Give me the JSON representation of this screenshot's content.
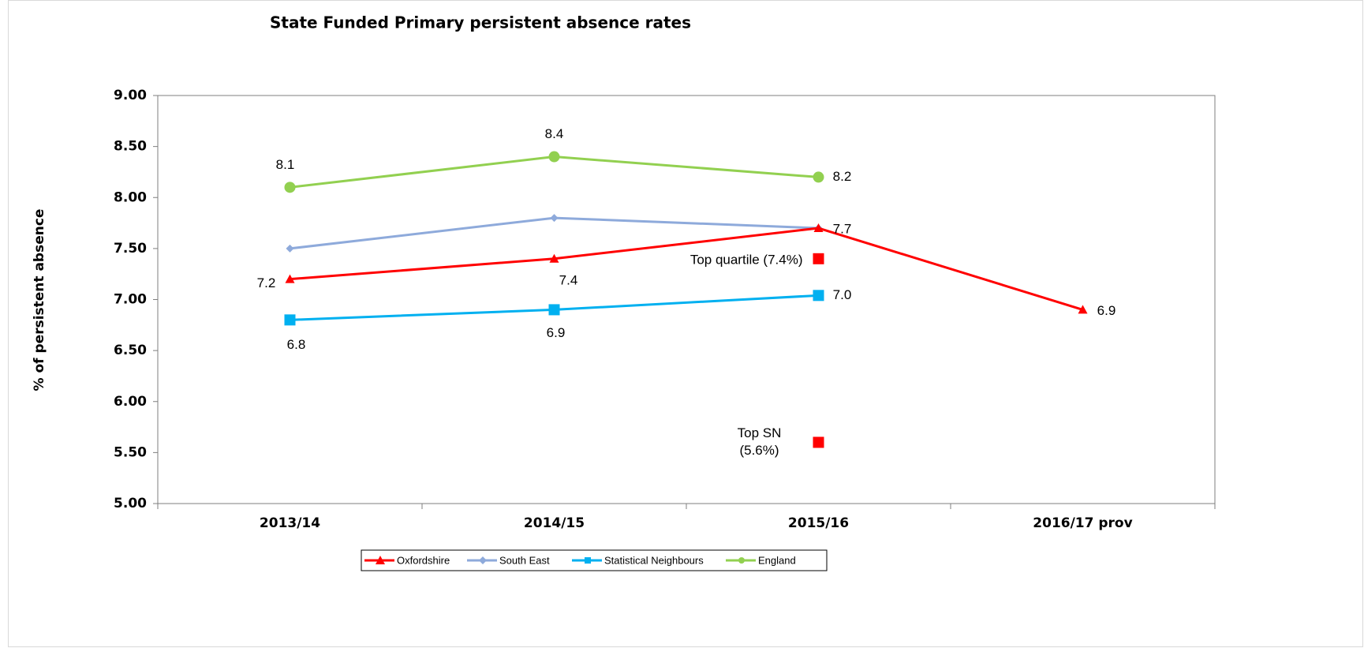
{
  "chart_data": {
    "type": "line",
    "title": "State Funded Primary persistent absence rates",
    "y_label": "% of persistent absence",
    "categories": [
      "2013/14",
      "2014/15",
      "2015/16",
      "2016/17 prov"
    ],
    "ylim": [
      5,
      9
    ],
    "yticks": [
      {
        "value": 5,
        "label": "5.00"
      },
      {
        "value": 5.5,
        "label": "5.50"
      },
      {
        "value": 6,
        "label": "6.00"
      },
      {
        "value": 6.5,
        "label": "6.50"
      },
      {
        "value": 7,
        "label": "7.00"
      },
      {
        "value": 7.5,
        "label": "7.50"
      },
      {
        "value": 8,
        "label": "8.00"
      },
      {
        "value": 8.5,
        "label": "8.50"
      },
      {
        "value": 9,
        "label": "9.00"
      }
    ],
    "series": [
      {
        "name": "Oxfordshire",
        "color": "#ff0000",
        "marker": "triangle",
        "values": [
          7.2,
          7.4,
          7.7,
          6.9
        ],
        "data_labels": true
      },
      {
        "name": "South East",
        "color": "#8eaadb",
        "marker": "diamond",
        "values": [
          7.5,
          7.8,
          7.7,
          null
        ],
        "data_labels": false
      },
      {
        "name": "Statistical Neighbours",
        "color": "#00b0f0",
        "marker": "square",
        "values": [
          6.8,
          6.9,
          7.04,
          null
        ],
        "value_labels": [
          "6.8",
          "6.9",
          "7.0",
          null
        ],
        "data_labels": true
      },
      {
        "name": "England",
        "color": "#92d050",
        "marker": "circle",
        "values": [
          8.1,
          8.4,
          8.2,
          null
        ],
        "data_labels": true
      }
    ],
    "annotations": [
      {
        "text": [
          "Top quartile (7.4%)"
        ],
        "x": "2015/16",
        "value": 7.4,
        "color": "#ff0000"
      },
      {
        "text": [
          "Top SN",
          "(5.6%)"
        ],
        "x": "2015/16",
        "value": 5.6,
        "color": "#ff0000"
      }
    ],
    "legend": "bottom"
  }
}
